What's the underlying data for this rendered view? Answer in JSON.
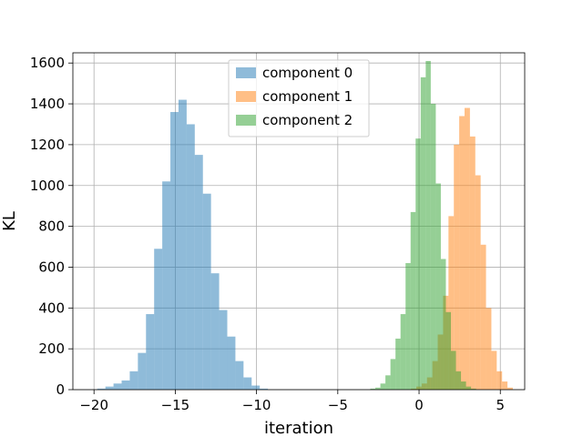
{
  "chart_data": {
    "type": "bar",
    "subtype": "histogram",
    "xlabel": "iteration",
    "ylabel": "KL",
    "xlim": [
      -21.3,
      6.5
    ],
    "ylim": [
      0,
      1650
    ],
    "xticks": [
      -20,
      -15,
      -10,
      -5,
      0,
      5
    ],
    "yticks": [
      0,
      200,
      400,
      600,
      800,
      1000,
      1200,
      1400,
      1600
    ],
    "grid": true,
    "legend_position": "top-center",
    "series": [
      {
        "name": "component 0",
        "color": "#1f77b4",
        "opacity": 0.5,
        "bin_start": -19.8,
        "bin_width": 0.5,
        "counts": [
          5,
          15,
          30,
          45,
          90,
          180,
          370,
          690,
          1020,
          1360,
          1420,
          1300,
          1150,
          960,
          570,
          390,
          260,
          140,
          60,
          20,
          5
        ]
      },
      {
        "name": "component 1",
        "color": "#ff7f0e",
        "opacity": 0.5,
        "bin_start": -0.5,
        "bin_width": 0.33,
        "counts": [
          5,
          15,
          30,
          60,
          140,
          270,
          460,
          850,
          1200,
          1340,
          1380,
          1240,
          1050,
          710,
          400,
          190,
          90,
          40,
          10
        ]
      },
      {
        "name": "component 2",
        "color": "#2ca02c",
        "opacity": 0.5,
        "bin_start": -3.0,
        "bin_width": 0.31,
        "counts": [
          5,
          10,
          30,
          70,
          150,
          250,
          370,
          620,
          870,
          1230,
          1530,
          1610,
          1400,
          1010,
          640,
          380,
          190,
          90,
          40,
          15,
          5
        ]
      }
    ]
  }
}
